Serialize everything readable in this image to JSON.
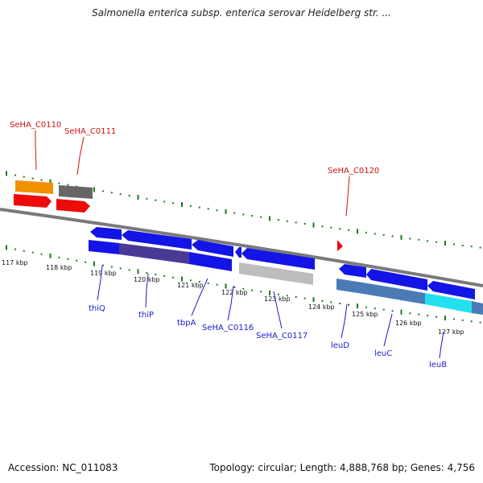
{
  "title": "Salmonella enterica subsp. enterica serovar Heidelberg str. ...",
  "footer": {
    "accession": "Accession: NC_011083",
    "summary": "Topology: circular; Length: 4,888,768 bp; Genes: 4,756"
  },
  "colors": {
    "blue_gene": "#1414e6",
    "red_gene": "#ee0a0a",
    "orange_gene": "#f39000",
    "gray_gene": "#666666",
    "light_gray_gene": "#bdbdbd",
    "steel_gene": "#4a7bb5",
    "purple_gene": "#4a3a96",
    "cyan_gene": "#22e0f0",
    "tick_green": "#1a7a1a",
    "backbone": "#7a7a7a",
    "label_red": "#cc1111",
    "label_blue": "#1a1acc"
  },
  "axis": {
    "ticks": [
      "117 kbp",
      "118 kbp",
      "119 kbp",
      "120 kbp",
      "121 kbp",
      "122 kbp",
      "123 kbp",
      "124 kbp",
      "125 kbp",
      "126 kbp",
      "127 kbp"
    ]
  },
  "labels": {
    "thiQ": "thiQ",
    "thiP": "thiP",
    "tbpA": "tbpA",
    "SeHA_C0116": "SeHA_C0116",
    "SeHA_C0117": "SeHA_C0117",
    "leuD": "leuD",
    "leuC": "leuC",
    "leuB": "leuB",
    "SeHA_C0110": "SeHA_C0110",
    "SeHA_C0111": "SeHA_C0111",
    "SeHA_C0120": "SeHA_C0120"
  }
}
